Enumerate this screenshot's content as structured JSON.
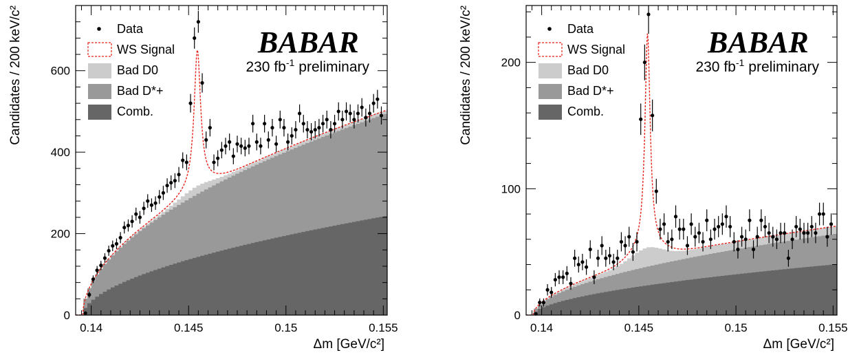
{
  "chart_data": [
    {
      "type": "histogram",
      "xlabel": "Δm [GeV/c²]",
      "ylabel": "Candidates / 200 keV/c²",
      "xlim": [
        0.1392,
        0.1552
      ],
      "ylim": [
        0,
        760
      ],
      "x_ticks": [
        0.14,
        0.145,
        0.15,
        0.155
      ],
      "x_tick_labels": [
        "0.14",
        "0.145",
        "0.15",
        "0.155"
      ],
      "y_ticks": [
        0,
        200,
        400,
        600
      ],
      "y_tick_labels": [
        "0",
        "200",
        "400",
        "600"
      ],
      "logo": "BABAR",
      "annotation": {
        "lumi": "230 fb",
        "exp": "-1",
        "tag": "preliminary"
      },
      "legend": [
        {
          "label": "Data",
          "kind": "marker"
        },
        {
          "label": "WS Signal",
          "kind": "dashed-box",
          "color": "#e8231c"
        },
        {
          "label": "Bad D0",
          "kind": "fill",
          "color": "#cccccc"
        },
        {
          "label": "Bad D*+",
          "kind": "fill",
          "color": "#999999"
        },
        {
          "label": "Comb.",
          "kind": "fill",
          "color": "#666666"
        }
      ],
      "stack_components": {
        "comb_scale": 242,
        "badDstar_scale": 250,
        "badD0_scale": 8,
        "threshold": 0.13957
      },
      "signal": {
        "mean": 0.14545,
        "amplitude": 335,
        "width": 0.0002
      },
      "data_points": {
        "x": [
          0.1397,
          0.1399,
          0.1401,
          0.1403,
          0.1405,
          0.1407,
          0.1409,
          0.1411,
          0.1413,
          0.1415,
          0.1417,
          0.1419,
          0.1421,
          0.1423,
          0.1425,
          0.1427,
          0.1429,
          0.1431,
          0.1433,
          0.1435,
          0.1437,
          0.1439,
          0.1441,
          0.1443,
          0.1445,
          0.1447,
          0.1449,
          0.1451,
          0.1453,
          0.1455,
          0.1457,
          0.1459,
          0.1461,
          0.1463,
          0.1465,
          0.1467,
          0.1469,
          0.1471,
          0.1473,
          0.1475,
          0.1477,
          0.1479,
          0.1481,
          0.1483,
          0.1485,
          0.1487,
          0.1489,
          0.1491,
          0.1493,
          0.1495,
          0.1497,
          0.1499,
          0.1501,
          0.1503,
          0.1505,
          0.1507,
          0.1509,
          0.1511,
          0.1513,
          0.1515,
          0.1517,
          0.1519,
          0.1521,
          0.1523,
          0.1525,
          0.1527,
          0.1529,
          0.1531,
          0.1533,
          0.1535,
          0.1537,
          0.1539,
          0.1541,
          0.1543,
          0.1545,
          0.1547,
          0.1549
        ],
        "y": [
          5,
          50,
          88,
          110,
          122,
          140,
          158,
          170,
          175,
          190,
          215,
          220,
          230,
          248,
          240,
          262,
          280,
          270,
          275,
          290,
          300,
          318,
          325,
          330,
          345,
          380,
          375,
          520,
          680,
          720,
          570,
          430,
          460,
          375,
          385,
          405,
          415,
          425,
          390,
          420,
          415,
          410,
          415,
          470,
          425,
          415,
          470,
          430,
          460,
          420,
          480,
          460,
          425,
          440,
          455,
          495,
          470,
          455,
          450,
          455,
          460,
          470,
          480,
          455,
          470,
          500,
          480,
          500,
          495,
          480,
          495,
          510,
          485,
          495,
          520,
          530,
          490
        ]
      }
    },
    {
      "type": "histogram",
      "xlabel": "Δm [GeV/c²]",
      "ylabel": "Candidates / 200 keV/c²",
      "xlim": [
        0.1392,
        0.1552
      ],
      "ylim": [
        0,
        245
      ],
      "x_ticks": [
        0.14,
        0.145,
        0.15,
        0.155
      ],
      "x_tick_labels": [
        "0.14",
        "0.145",
        "0.15",
        "0.155"
      ],
      "y_ticks": [
        0,
        100,
        200
      ],
      "y_tick_labels": [
        "0",
        "100",
        "200"
      ],
      "logo": "BABAR",
      "annotation": {
        "lumi": "230 fb",
        "exp": "-1",
        "tag": "preliminary"
      },
      "legend": [
        {
          "label": "Data",
          "kind": "marker"
        },
        {
          "label": "WS Signal",
          "kind": "dashed-box",
          "color": "#e8231c"
        },
        {
          "label": "Bad D0",
          "kind": "fill",
          "color": "#cccccc"
        },
        {
          "label": "Bad D*+",
          "kind": "fill",
          "color": "#999999"
        },
        {
          "label": "Comb.",
          "kind": "fill",
          "color": "#666666"
        }
      ],
      "stack_components": {
        "comb_scale": 40,
        "badDstar_scale": 24,
        "badD0_scale": 6,
        "threshold": 0.13957
      },
      "signal": {
        "mean": 0.14545,
        "amplitude": 170,
        "width": 0.00016
      },
      "data_points": {
        "x": [
          0.1397,
          0.1399,
          0.1401,
          0.1403,
          0.1405,
          0.1407,
          0.1409,
          0.1411,
          0.1413,
          0.1415,
          0.1417,
          0.1419,
          0.1421,
          0.1423,
          0.1425,
          0.1427,
          0.1429,
          0.1431,
          0.1433,
          0.1435,
          0.1437,
          0.1439,
          0.1441,
          0.1443,
          0.1445,
          0.1447,
          0.1449,
          0.1451,
          0.1453,
          0.1455,
          0.1457,
          0.1459,
          0.1461,
          0.1463,
          0.1465,
          0.1467,
          0.1469,
          0.1471,
          0.1473,
          0.1475,
          0.1477,
          0.1479,
          0.1481,
          0.1483,
          0.1485,
          0.1487,
          0.1489,
          0.1491,
          0.1493,
          0.1495,
          0.1497,
          0.1499,
          0.1501,
          0.1503,
          0.1505,
          0.1507,
          0.1509,
          0.1511,
          0.1513,
          0.1515,
          0.1517,
          0.1519,
          0.1521,
          0.1523,
          0.1525,
          0.1527,
          0.1529,
          0.1531,
          0.1533,
          0.1535,
          0.1537,
          0.1539,
          0.1541,
          0.1543,
          0.1545,
          0.1547,
          0.1549
        ],
        "y": [
          1,
          10,
          10,
          20,
          18,
          28,
          30,
          30,
          33,
          25,
          45,
          40,
          42,
          38,
          52,
          30,
          45,
          55,
          45,
          47,
          42,
          45,
          58,
          55,
          62,
          50,
          58,
          155,
          200,
          238,
          158,
          98,
          68,
          72,
          58,
          60,
          78,
          68,
          68,
          55,
          72,
          62,
          65,
          58,
          75,
          60,
          68,
          70,
          72,
          78,
          70,
          58,
          52,
          62,
          60,
          75,
          52,
          62,
          75,
          70,
          65,
          62,
          60,
          65,
          65,
          45,
          60,
          70,
          68,
          65,
          65,
          70,
          65,
          80,
          80,
          62,
          72
        ]
      }
    }
  ]
}
